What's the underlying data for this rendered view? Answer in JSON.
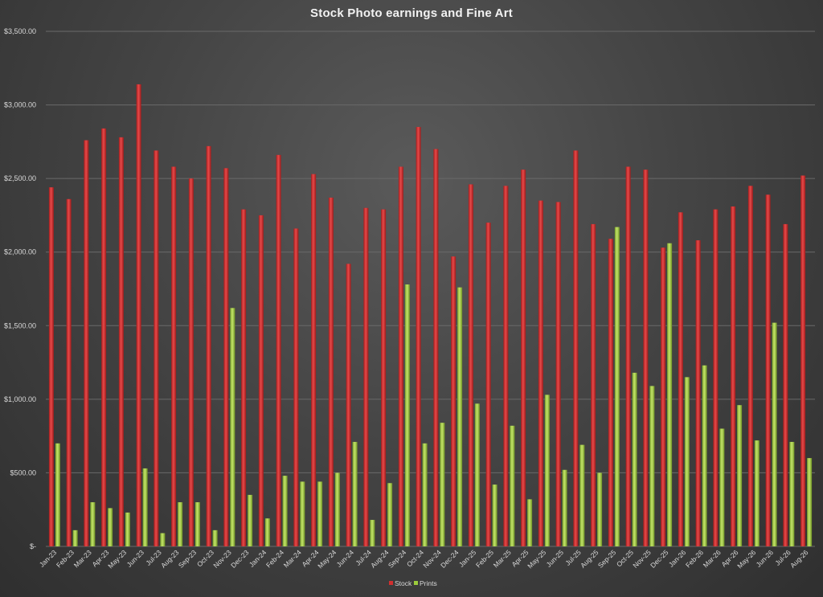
{
  "chart_data": {
    "type": "bar",
    "title": "Stock Photo earnings and Fine Art",
    "xlabel": "",
    "ylabel": "",
    "ylim": [
      0,
      3500
    ],
    "yticks": [
      0,
      500,
      1000,
      1500,
      2000,
      2500,
      3000,
      3500
    ],
    "ytick_labels": [
      "$-",
      "$500.00",
      "$1,000.00",
      "$1,500.00",
      "$2,000.00",
      "$2,500.00",
      "$3,000.00",
      "$3,500.00"
    ],
    "grid": true,
    "legend_position": "bottom",
    "categories": [
      "Jan-23",
      "Feb-23",
      "Mar-23",
      "Apr-23",
      "May-23",
      "Jun-23",
      "Jul-23",
      "Aug-23",
      "Sep-23",
      "Oct-23",
      "Nov-23",
      "Dec-23",
      "Jan-24",
      "Feb-24",
      "Mar-24",
      "Apr-24",
      "May-24",
      "Jun-24",
      "Jul-24",
      "Aug-24",
      "Sep-24",
      "Oct-24",
      "Nov-24",
      "Dec-24",
      "Jan-25",
      "Feb-25",
      "Mar-25",
      "Apr-25",
      "May-25",
      "Jun-25",
      "Jul-25",
      "Aug-25",
      "Sep-25",
      "Oct-25",
      "Nov-25",
      "Dec-25",
      "Jan-26",
      "Feb-26",
      "Mar-26",
      "Apr-26",
      "May-26",
      "Jun-26",
      "Jul-26",
      "Aug-26"
    ],
    "series": [
      {
        "name": "Stock",
        "color": "#d32f2f",
        "values": [
          2440,
          2360,
          2760,
          2840,
          2780,
          3140,
          2690,
          2580,
          2500,
          2720,
          2570,
          2290,
          2250,
          2660,
          2160,
          2530,
          2370,
          1920,
          2300,
          2290,
          2580,
          2850,
          2700,
          1970,
          2460,
          2200,
          2450,
          2560,
          2350,
          2340,
          2690,
          2190,
          2090,
          2580,
          2560,
          2030,
          2270,
          2080,
          2290,
          2310,
          2450,
          2390,
          2190,
          2520
        ]
      },
      {
        "name": "Prints",
        "color": "#9ccc3c",
        "values": [
          700,
          110,
          300,
          260,
          230,
          530,
          90,
          300,
          300,
          110,
          1620,
          350,
          190,
          480,
          440,
          440,
          500,
          710,
          180,
          430,
          1780,
          700,
          840,
          1760,
          970,
          420,
          820,
          320,
          1030,
          520,
          690,
          500,
          2170,
          1180,
          1090,
          2060,
          1150,
          1230,
          800,
          960,
          720,
          1520,
          710,
          600
        ]
      }
    ]
  }
}
